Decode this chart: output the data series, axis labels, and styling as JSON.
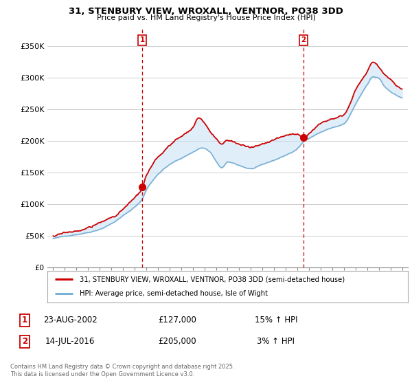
{
  "title1": "31, STENBURY VIEW, WROXALL, VENTNOR, PO38 3DD",
  "title2": "Price paid vs. HM Land Registry's House Price Index (HPI)",
  "background_color": "#ffffff",
  "grid_color": "#cccccc",
  "sale1_date": "23-AUG-2002",
  "sale1_price": 127000,
  "sale1_pct": "15% ↑ HPI",
  "sale2_date": "14-JUL-2016",
  "sale2_price": 205000,
  "sale2_pct": "3% ↑ HPI",
  "legend_label1": "31, STENBURY VIEW, WROXALL, VENTNOR, PO38 3DD (semi-detached house)",
  "legend_label2": "HPI: Average price, semi-detached house, Isle of Wight",
  "footer": "Contains HM Land Registry data © Crown copyright and database right 2025.\nThis data is licensed under the Open Government Licence v3.0.",
  "sale1_x": 2002.645,
  "sale2_x": 2016.538,
  "ylim_max": 380000,
  "xlim_min": 1994.5,
  "xlim_max": 2025.5,
  "red_color": "#cc0000",
  "blue_color": "#7ab0d4",
  "fill_color": "#ddeeff"
}
